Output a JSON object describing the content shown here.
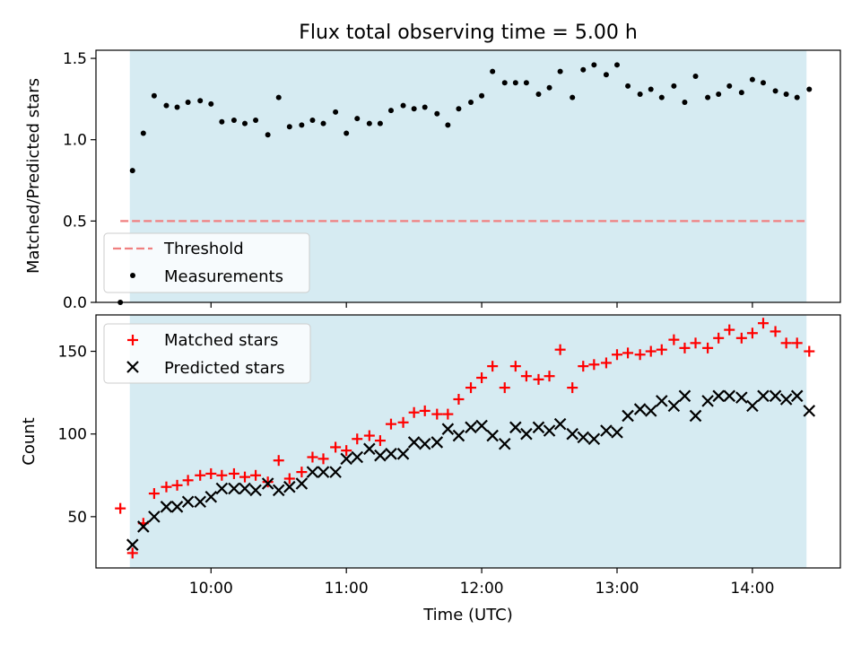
{
  "chart_data": [
    {
      "type": "scatter",
      "title": "Flux total observing time = 5.00 h",
      "xlabel": "",
      "ylabel": "Matched/Predicted stars",
      "xlim": [
        9.15,
        14.65
      ],
      "ylim": [
        0,
        1.55
      ],
      "yticks": [
        0,
        0.5,
        1.0,
        1.5
      ],
      "ytick_labels": [
        "0.0",
        "0.5",
        "1.0",
        "1.5"
      ],
      "xticks": [
        10,
        11,
        12,
        13,
        14
      ],
      "shaded_span": [
        9.4,
        14.4
      ],
      "threshold": {
        "name": "Threshold",
        "y": 0.5,
        "x_range": [
          9.33,
          14.4
        ],
        "color": "#f08080"
      },
      "legend": {
        "placement": "lower-left",
        "entries": [
          "Threshold",
          "Measurements"
        ]
      },
      "series": [
        {
          "name": "Measurements",
          "color": "#000000",
          "x": [
            9.33,
            9.42,
            9.5,
            9.58,
            9.67,
            9.75,
            9.83,
            9.92,
            10.0,
            10.08,
            10.17,
            10.25,
            10.33,
            10.42,
            10.5,
            10.58,
            10.67,
            10.75,
            10.83,
            10.92,
            11.0,
            11.08,
            11.17,
            11.25,
            11.33,
            11.42,
            11.5,
            11.58,
            11.67,
            11.75,
            11.83,
            11.92,
            12.0,
            12.08,
            12.17,
            12.25,
            12.33,
            12.42,
            12.5,
            12.58,
            12.67,
            12.75,
            12.83,
            12.92,
            13.0,
            13.08,
            13.17,
            13.25,
            13.33,
            13.42,
            13.5,
            13.58,
            13.67,
            13.75,
            13.83,
            13.92,
            14.0,
            14.08,
            14.17,
            14.25,
            14.33,
            14.42
          ],
          "values": [
            0.0,
            0.81,
            1.04,
            1.27,
            1.21,
            1.2,
            1.23,
            1.24,
            1.22,
            1.11,
            1.12,
            1.1,
            1.12,
            1.03,
            1.26,
            1.08,
            1.09,
            1.12,
            1.1,
            1.17,
            1.04,
            1.13,
            1.1,
            1.1,
            1.18,
            1.21,
            1.19,
            1.2,
            1.16,
            1.09,
            1.19,
            1.23,
            1.27,
            1.42,
            1.35,
            1.35,
            1.35,
            1.28,
            1.32,
            1.42,
            1.26,
            1.43,
            1.46,
            1.4,
            1.46,
            1.33,
            1.28,
            1.31,
            1.26,
            1.33,
            1.23,
            1.39,
            1.26,
            1.28,
            1.33,
            1.29,
            1.37,
            1.35,
            1.3,
            1.28,
            1.26,
            1.31
          ]
        }
      ]
    },
    {
      "type": "scatter",
      "title": "",
      "xlabel": "Time (UTC)",
      "ylabel": "Count",
      "xlim": [
        9.15,
        14.65
      ],
      "ylim": [
        19,
        172
      ],
      "yticks": [
        50,
        100,
        150
      ],
      "ytick_labels": [
        "50",
        "100",
        "150"
      ],
      "xticks": [
        10,
        11,
        12,
        13,
        14
      ],
      "xtick_labels": [
        "10:00",
        "11:00",
        "12:00",
        "13:00",
        "14:00"
      ],
      "shaded_span": [
        9.4,
        14.4
      ],
      "legend": {
        "placement": "top-left",
        "entries": [
          "Matched stars",
          "Predicted stars"
        ]
      },
      "series": [
        {
          "name": "Matched stars",
          "marker": "plus",
          "color": "#ff0000",
          "x": [
            9.33,
            9.42,
            9.5,
            9.58,
            9.67,
            9.75,
            9.83,
            9.92,
            10.0,
            10.08,
            10.17,
            10.25,
            10.33,
            10.42,
            10.5,
            10.58,
            10.67,
            10.75,
            10.83,
            10.92,
            11.0,
            11.08,
            11.17,
            11.25,
            11.33,
            11.42,
            11.5,
            11.58,
            11.67,
            11.75,
            11.83,
            11.92,
            12.0,
            12.08,
            12.17,
            12.25,
            12.33,
            12.42,
            12.5,
            12.58,
            12.67,
            12.75,
            12.83,
            12.92,
            13.0,
            13.08,
            13.17,
            13.25,
            13.33,
            13.42,
            13.5,
            13.58,
            13.67,
            13.75,
            13.83,
            13.92,
            14.0,
            14.08,
            14.17,
            14.25,
            14.33,
            14.42
          ],
          "values": [
            55,
            28,
            46,
            64,
            68,
            69,
            72,
            75,
            76,
            75,
            76,
            74,
            75,
            71,
            84,
            73,
            77,
            86,
            85,
            92,
            90,
            97,
            99,
            96,
            106,
            107,
            113,
            114,
            112,
            112,
            121,
            128,
            134,
            141,
            128,
            141,
            135,
            133,
            135,
            151,
            128,
            141,
            142,
            143,
            148,
            149,
            148,
            150,
            151,
            157,
            152,
            155,
            152,
            158,
            163,
            158,
            161,
            167,
            162,
            155,
            155,
            150
          ]
        },
        {
          "name": "Predicted stars",
          "marker": "x",
          "color": "#000000",
          "x": [
            9.42,
            9.5,
            9.58,
            9.67,
            9.75,
            9.83,
            9.92,
            10.0,
            10.08,
            10.17,
            10.25,
            10.33,
            10.42,
            10.5,
            10.58,
            10.67,
            10.75,
            10.83,
            10.92,
            11.0,
            11.08,
            11.17,
            11.25,
            11.33,
            11.42,
            11.5,
            11.58,
            11.67,
            11.75,
            11.83,
            11.92,
            12.0,
            12.08,
            12.17,
            12.25,
            12.33,
            12.42,
            12.5,
            12.58,
            12.67,
            12.75,
            12.83,
            12.92,
            13.0,
            13.08,
            13.17,
            13.25,
            13.33,
            13.42,
            13.5,
            13.58,
            13.67,
            13.75,
            13.83,
            13.92,
            14.0,
            14.08,
            14.17,
            14.25,
            14.33,
            14.42
          ],
          "values": [
            33,
            44,
            50,
            56,
            56,
            59,
            59,
            62,
            67,
            67,
            67,
            66,
            70,
            66,
            68,
            70,
            77,
            77,
            77,
            85,
            86,
            91,
            87,
            88,
            88,
            95,
            94,
            95,
            103,
            99,
            104,
            105,
            99,
            94,
            104,
            100,
            104,
            102,
            106,
            100,
            98,
            97,
            102,
            101,
            111,
            115,
            114,
            120,
            117,
            123,
            111,
            120,
            123,
            123,
            122,
            117,
            123,
            123,
            121,
            123,
            114
          ]
        }
      ]
    }
  ]
}
